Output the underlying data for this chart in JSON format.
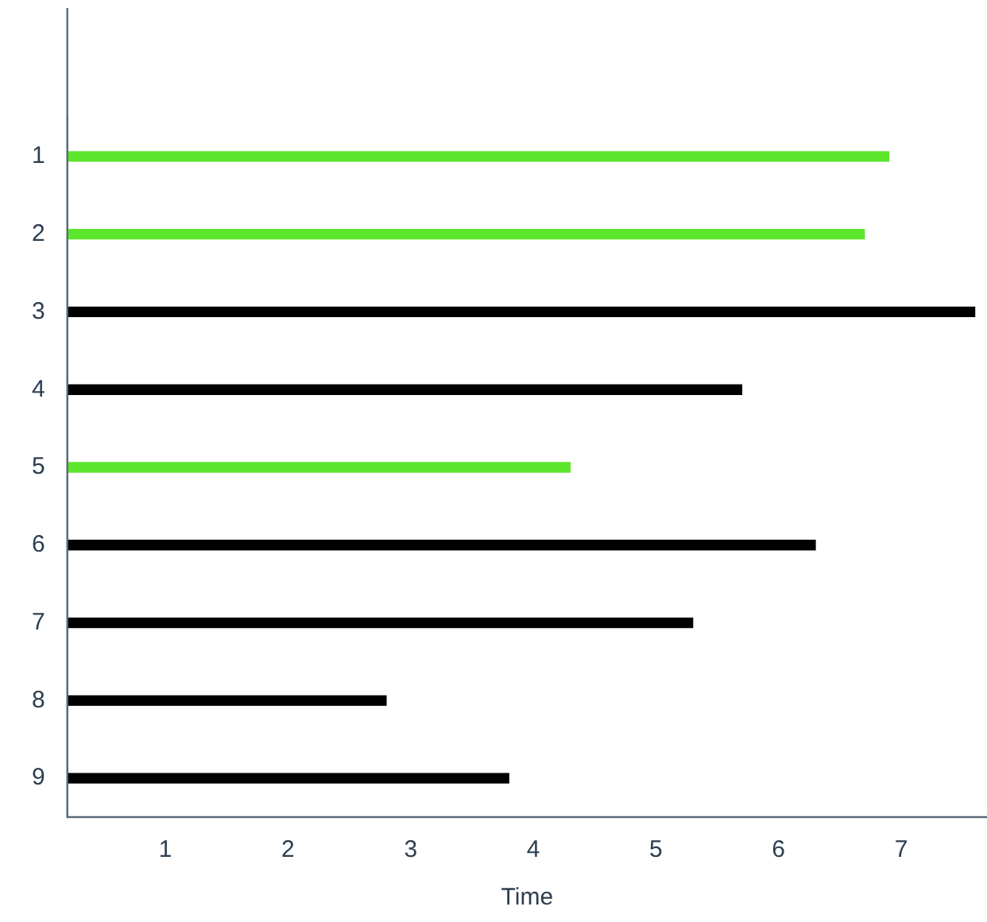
{
  "chart_data": {
    "type": "bar",
    "orientation": "horizontal",
    "xlabel": "Time",
    "categories": [
      "1",
      "2",
      "3",
      "4",
      "5",
      "6",
      "7",
      "8",
      "9"
    ],
    "values": [
      6.9,
      6.7,
      7.6,
      5.7,
      4.3,
      6.3,
      5.3,
      2.8,
      3.8
    ],
    "colors": [
      "#5be52b",
      "#5be52b",
      "#000000",
      "#000000",
      "#5be52b",
      "#000000",
      "#000000",
      "#000000",
      "#000000"
    ],
    "xlim": [
      0.2,
      7.7
    ],
    "xticks": [
      1,
      2,
      3,
      4,
      5,
      6,
      7
    ],
    "grid": false,
    "legend": false
  }
}
